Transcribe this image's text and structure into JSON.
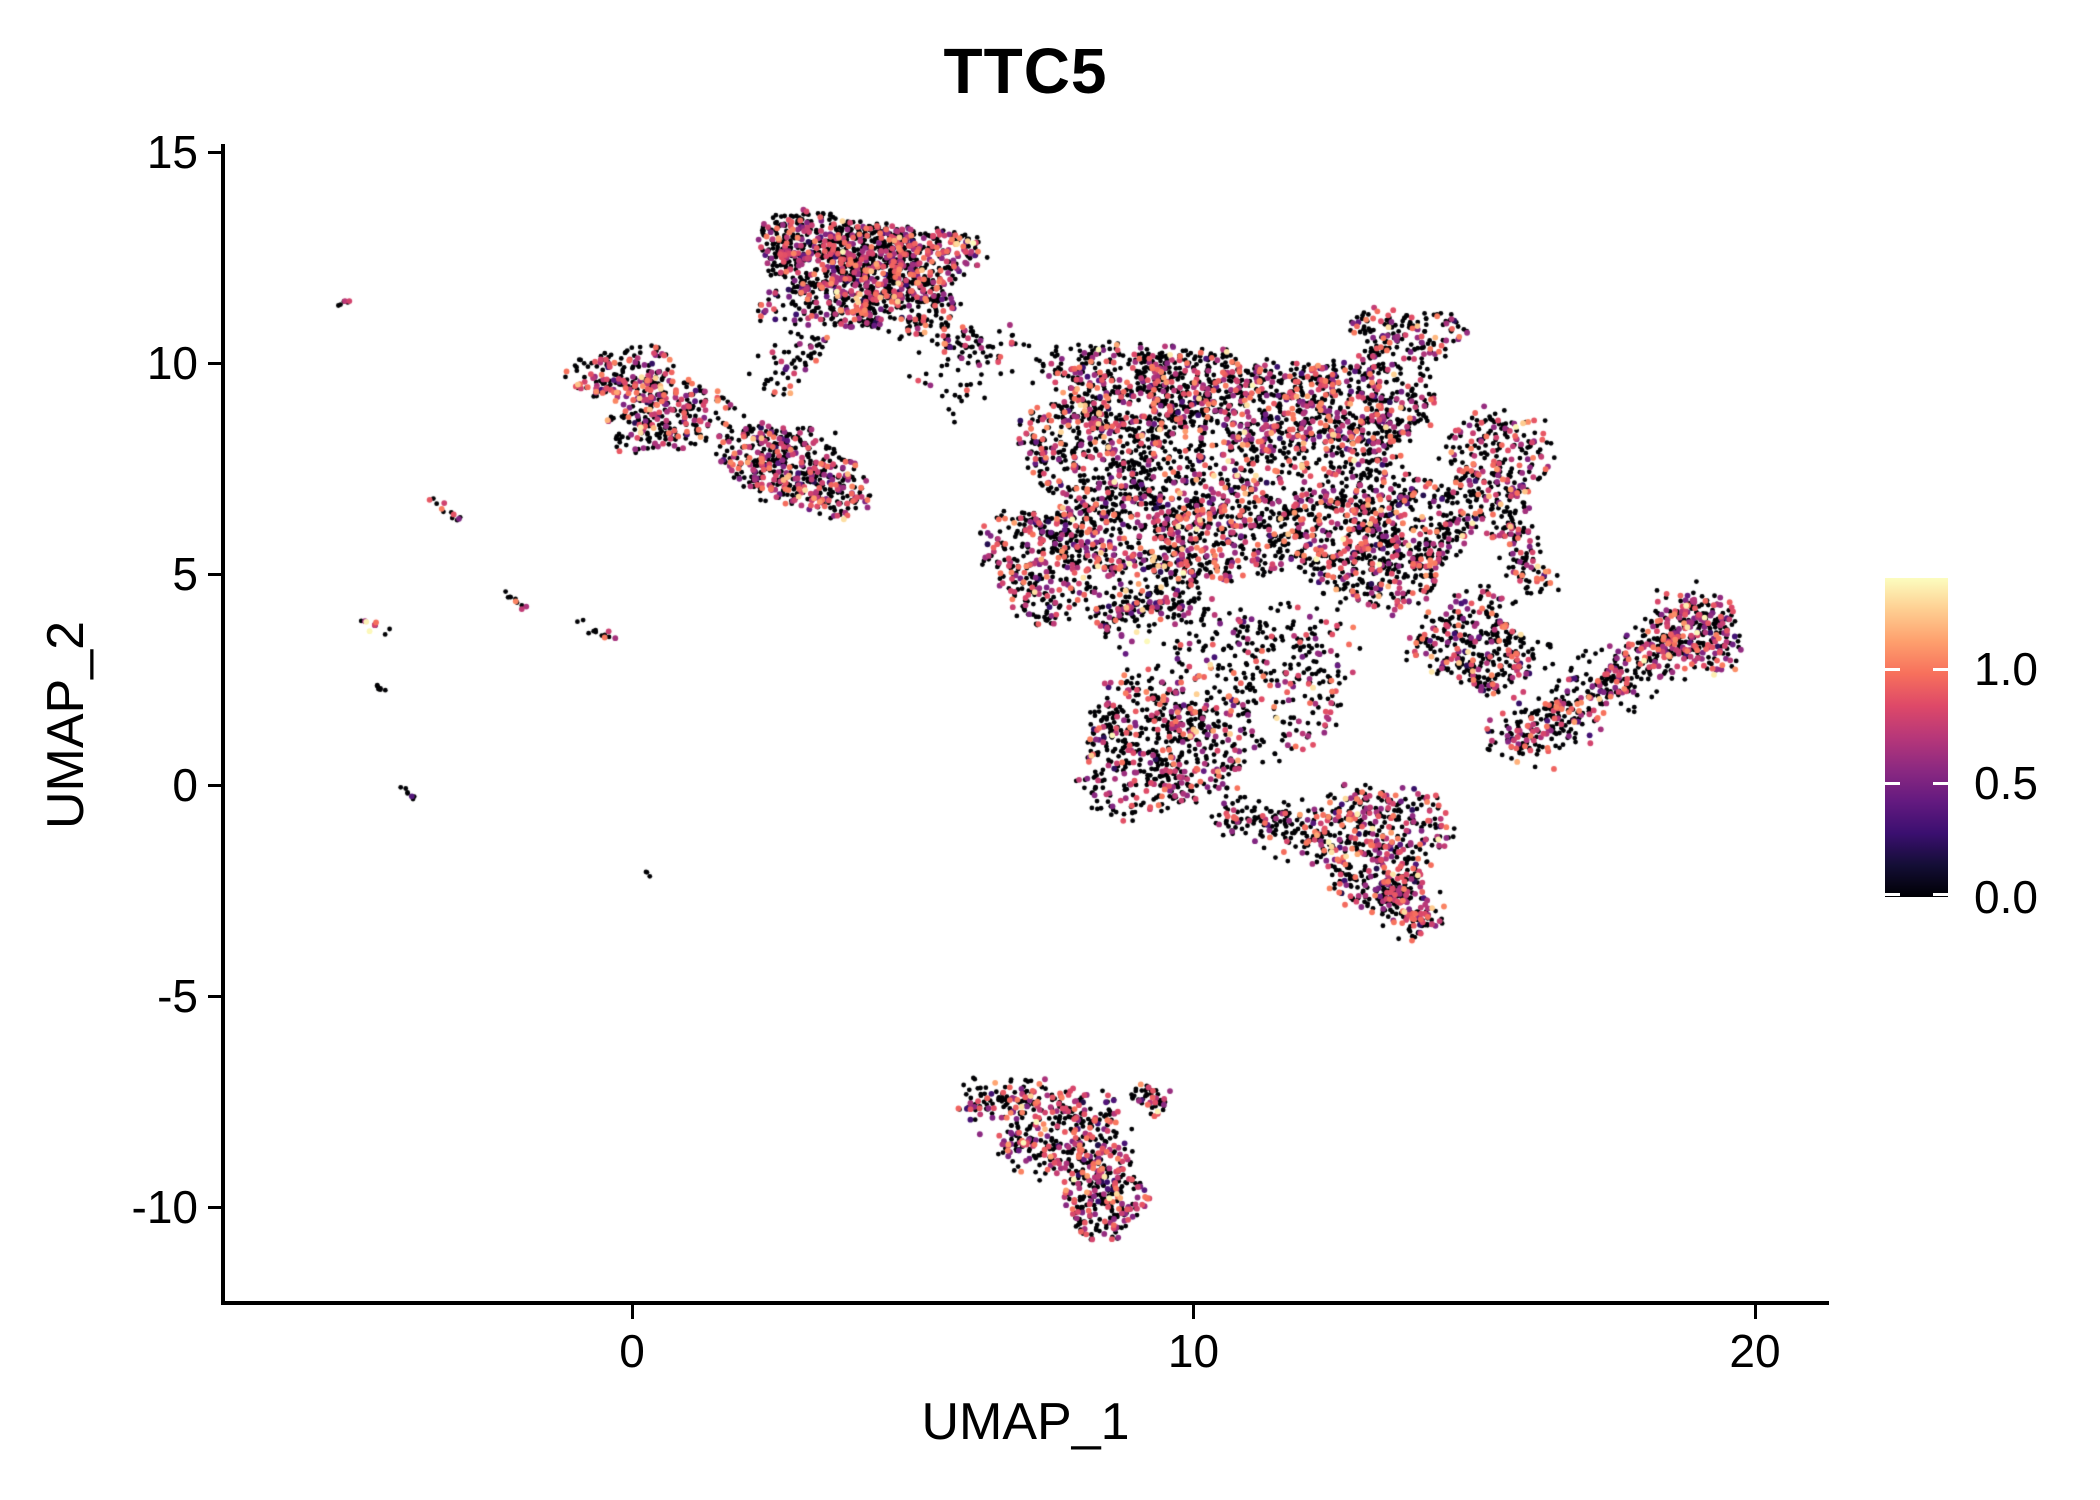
{
  "title": "TTC5",
  "axes": {
    "x": {
      "label": "UMAP_1",
      "tick_labels": [
        "0",
        "10",
        "20"
      ],
      "tick_values": [
        0,
        10,
        20
      ],
      "range": [
        -7.3,
        21.3
      ]
    },
    "y": {
      "label": "UMAP_2",
      "tick_labels": [
        "15",
        "10",
        "5",
        "0",
        "-5",
        "-10"
      ],
      "tick_values": [
        15,
        10,
        5,
        0,
        -5,
        -10
      ],
      "range": [
        -12.3,
        15.2
      ]
    }
  },
  "colorbar": {
    "tick_labels": [
      "1.0",
      "0.5",
      "0.0"
    ],
    "tick_values": [
      1.0,
      0.5,
      0.0
    ],
    "min": 0.0,
    "max": 1.4,
    "position": "right"
  },
  "chart_data": {
    "type": "scatter",
    "title": "TTC5",
    "xlabel": "UMAP_1",
    "ylabel": "UMAP_2",
    "xlim": [
      -7.3,
      21.3
    ],
    "ylim": [
      -12.3,
      15.2
    ],
    "grid": false,
    "legend_position": "right",
    "colormap": "magma",
    "colormap_stops": [
      [
        0.0,
        "#000004"
      ],
      [
        0.1,
        "#140E36"
      ],
      [
        0.2,
        "#3B0F70"
      ],
      [
        0.3,
        "#641A80"
      ],
      [
        0.4,
        "#8C2981"
      ],
      [
        0.5,
        "#B73779"
      ],
      [
        0.6,
        "#DE4968"
      ],
      [
        0.7,
        "#F7705C"
      ],
      [
        0.8,
        "#FE9F6D"
      ],
      [
        0.9,
        "#FECE91"
      ],
      [
        1.0,
        "#FCFDBF"
      ]
    ],
    "value_max": 1.4,
    "point_radius_zero": 2.4,
    "point_radius_expr": 2.9,
    "seed": 1337,
    "clusters": [
      {
        "kind": "blob",
        "cx": 3.5,
        "cy": 12.7,
        "rx": 1.35,
        "ry": 0.85,
        "n": 520,
        "p_zero": 0.58
      },
      {
        "kind": "blob",
        "cx": 4.9,
        "cy": 12.4,
        "rx": 1.25,
        "ry": 0.95,
        "n": 480,
        "p_zero": 0.58
      },
      {
        "kind": "blob",
        "cx": 4.1,
        "cy": 11.5,
        "rx": 1.7,
        "ry": 0.75,
        "n": 420,
        "p_zero": 0.6
      },
      {
        "kind": "band",
        "x1": 4.9,
        "y1": 10.9,
        "x2": 6.6,
        "y2": 10.3,
        "w": 0.45,
        "n": 70,
        "p_zero": 0.78
      },
      {
        "kind": "band",
        "x1": 3.3,
        "y1": 10.7,
        "x2": 2.5,
        "y2": 9.2,
        "w": 0.5,
        "n": 60,
        "p_zero": 0.75
      },
      {
        "kind": "band",
        "x1": 5.2,
        "y1": 9.2,
        "x2": 7.0,
        "y2": 10.6,
        "w": 0.9,
        "n": 55,
        "p_zero": 0.8
      },
      {
        "kind": "blob",
        "cx": -0.1,
        "cy": 9.7,
        "rx": 0.95,
        "ry": 0.7,
        "n": 200,
        "p_zero": 0.56
      },
      {
        "kind": "blob",
        "cx": 0.9,
        "cy": 8.8,
        "rx": 0.95,
        "ry": 0.85,
        "n": 170,
        "p_zero": 0.6
      },
      {
        "kind": "blob",
        "cx": 0.1,
        "cy": 8.4,
        "rx": 0.6,
        "ry": 0.5,
        "n": 70,
        "p_zero": 0.62
      },
      {
        "kind": "blob",
        "cx": 2.6,
        "cy": 7.7,
        "rx": 1.05,
        "ry": 0.9,
        "n": 330,
        "p_zero": 0.6
      },
      {
        "kind": "blob",
        "cx": 3.5,
        "cy": 7.0,
        "rx": 0.85,
        "ry": 0.65,
        "n": 180,
        "p_zero": 0.6
      },
      {
        "kind": "blob",
        "cx": 9.2,
        "cy": 9.4,
        "rx": 1.9,
        "ry": 1.15,
        "n": 680,
        "p_zero": 0.66
      },
      {
        "kind": "blob",
        "cx": 12.2,
        "cy": 8.7,
        "rx": 2.1,
        "ry": 1.5,
        "n": 950,
        "p_zero": 0.64
      },
      {
        "kind": "blob",
        "cx": 9.7,
        "cy": 6.3,
        "rx": 2.1,
        "ry": 1.6,
        "n": 950,
        "p_zero": 0.66
      },
      {
        "kind": "blob",
        "cx": 13.2,
        "cy": 5.8,
        "rx": 1.7,
        "ry": 1.5,
        "n": 800,
        "p_zero": 0.64
      },
      {
        "kind": "blob",
        "cx": 15.4,
        "cy": 7.5,
        "rx": 0.85,
        "ry": 1.5,
        "n": 300,
        "p_zero": 0.62
      },
      {
        "kind": "blob",
        "cx": 7.3,
        "cy": 5.3,
        "rx": 1.05,
        "ry": 1.35,
        "n": 340,
        "p_zero": 0.68
      },
      {
        "kind": "blob",
        "cx": 9.3,
        "cy": 0.8,
        "rx": 1.4,
        "ry": 1.6,
        "n": 560,
        "p_zero": 0.66
      },
      {
        "kind": "blob",
        "cx": 11.2,
        "cy": 2.6,
        "rx": 1.7,
        "ry": 1.7,
        "n": 360,
        "p_zero": 0.72
      },
      {
        "kind": "blob",
        "cx": 13.3,
        "cy": -1.4,
        "rx": 1.15,
        "ry": 1.5,
        "n": 470,
        "p_zero": 0.62
      },
      {
        "kind": "blob",
        "cx": 14.9,
        "cy": 3.4,
        "rx": 0.95,
        "ry": 1.15,
        "n": 260,
        "p_zero": 0.66
      },
      {
        "kind": "blob",
        "cx": 13.8,
        "cy": 10.6,
        "rx": 1.0,
        "ry": 0.75,
        "n": 170,
        "p_zero": 0.66
      },
      {
        "kind": "band",
        "x1": 8.2,
        "y1": 3.9,
        "x2": 10.2,
        "y2": 4.6,
        "w": 0.7,
        "n": 220,
        "p_zero": 0.66
      },
      {
        "kind": "band",
        "x1": 10.4,
        "y1": -0.6,
        "x2": 12.4,
        "y2": -1.2,
        "w": 0.5,
        "n": 160,
        "p_zero": 0.7
      },
      {
        "kind": "blob",
        "cx": 8.0,
        "cy": 8.0,
        "rx": 1.2,
        "ry": 1.0,
        "n": 280,
        "p_zero": 0.66
      },
      {
        "kind": "band",
        "x1": 13.4,
        "y1": -2.2,
        "x2": 14.2,
        "y2": -3.5,
        "w": 0.45,
        "n": 150,
        "p_zero": 0.5
      },
      {
        "kind": "band",
        "x1": 15.6,
        "y1": 0.8,
        "x2": 19.3,
        "y2": 4.2,
        "w": 0.6,
        "n": 560,
        "p_zero": 0.62
      },
      {
        "kind": "blob",
        "cx": 19.0,
        "cy": 3.6,
        "rx": 0.8,
        "ry": 0.9,
        "n": 170,
        "p_zero": 0.5
      },
      {
        "kind": "band",
        "x1": 16.1,
        "y1": 4.4,
        "x2": 15.7,
        "y2": 6.2,
        "w": 0.4,
        "n": 90,
        "p_zero": 0.68
      },
      {
        "kind": "band",
        "x1": 15.2,
        "y1": 2.2,
        "x2": 16.0,
        "y2": 3.6,
        "w": 0.5,
        "n": 80,
        "p_zero": 0.72
      },
      {
        "kind": "band",
        "x1": 5.9,
        "y1": -7.4,
        "x2": 8.6,
        "y2": -7.9,
        "w": 0.55,
        "n": 260,
        "p_zero": 0.56
      },
      {
        "kind": "band",
        "x1": 6.6,
        "y1": -8.4,
        "x2": 8.8,
        "y2": -9.1,
        "w": 0.55,
        "n": 240,
        "p_zero": 0.56
      },
      {
        "kind": "blob",
        "cx": 8.4,
        "cy": -9.9,
        "rx": 0.75,
        "ry": 0.8,
        "n": 200,
        "p_zero": 0.56
      },
      {
        "kind": "band",
        "x1": 8.9,
        "y1": -7.3,
        "x2": 9.5,
        "y2": -7.6,
        "w": 0.3,
        "n": 50,
        "p_zero": 0.7
      },
      {
        "kind": "band",
        "x1": -5.25,
        "y1": 11.35,
        "x2": -5.05,
        "y2": 11.5,
        "w": 0.07,
        "n": 6,
        "p_zero": 0.5
      },
      {
        "kind": "band",
        "x1": -3.6,
        "y1": 6.8,
        "x2": -3.05,
        "y2": 6.3,
        "w": 0.09,
        "n": 12,
        "p_zero": 0.55
      },
      {
        "kind": "band",
        "x1": -2.3,
        "y1": 4.6,
        "x2": -1.85,
        "y2": 4.15,
        "w": 0.09,
        "n": 10,
        "p_zero": 0.7
      },
      {
        "kind": "band",
        "x1": -4.85,
        "y1": 3.95,
        "x2": -4.35,
        "y2": 3.6,
        "w": 0.09,
        "n": 10,
        "p_zero": 0.6
      },
      {
        "kind": "band",
        "x1": -1.0,
        "y1": 3.9,
        "x2": -0.25,
        "y2": 3.4,
        "w": 0.1,
        "n": 12,
        "p_zero": 0.75
      },
      {
        "kind": "band",
        "x1": -4.6,
        "y1": 2.4,
        "x2": -4.3,
        "y2": 2.05,
        "w": 0.08,
        "n": 7,
        "p_zero": 0.85
      },
      {
        "kind": "band",
        "x1": -4.15,
        "y1": -0.05,
        "x2": -3.85,
        "y2": -0.35,
        "w": 0.08,
        "n": 7,
        "p_zero": 0.9
      },
      {
        "kind": "blob",
        "cx": 0.3,
        "cy": -2.1,
        "rx": 0.07,
        "ry": 0.06,
        "n": 3,
        "p_zero": 0.9
      }
    ]
  }
}
